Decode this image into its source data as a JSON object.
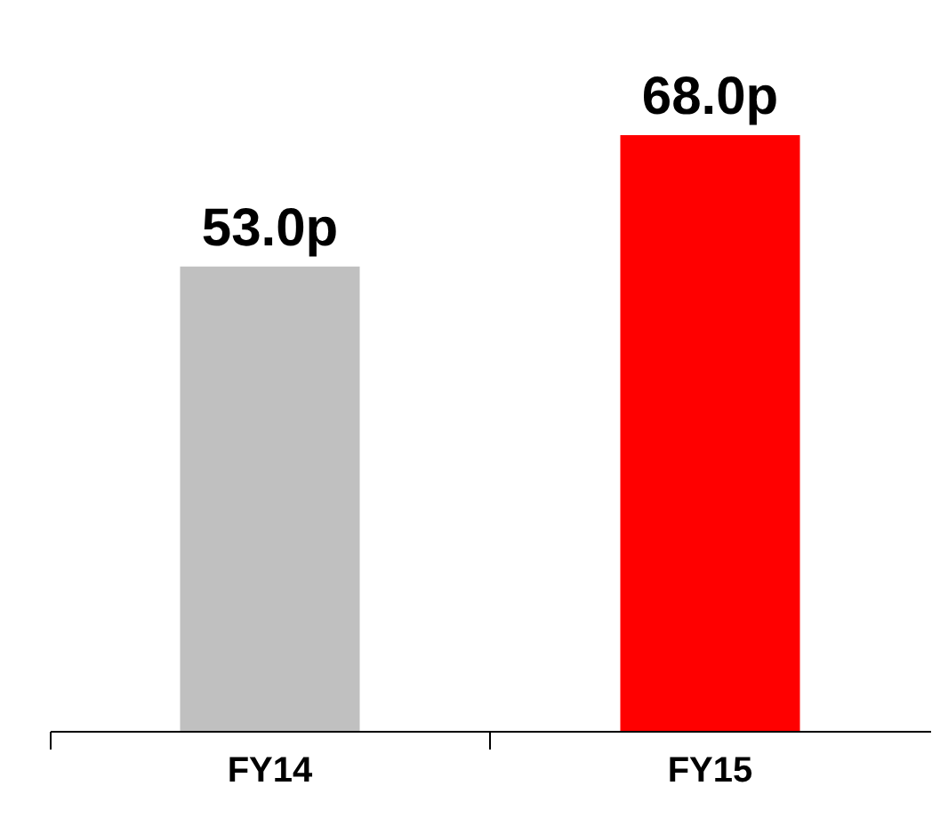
{
  "chart_data": {
    "type": "bar",
    "relative": false,
    "categories": [
      "FY14",
      "FY15"
    ],
    "values": [
      53.0,
      68.0
    ],
    "colors": [
      "#c0c0c0",
      "#ff0000"
    ],
    "value_labels": [
      "53.0p",
      "68.0p"
    ],
    "grid": false
  }
}
